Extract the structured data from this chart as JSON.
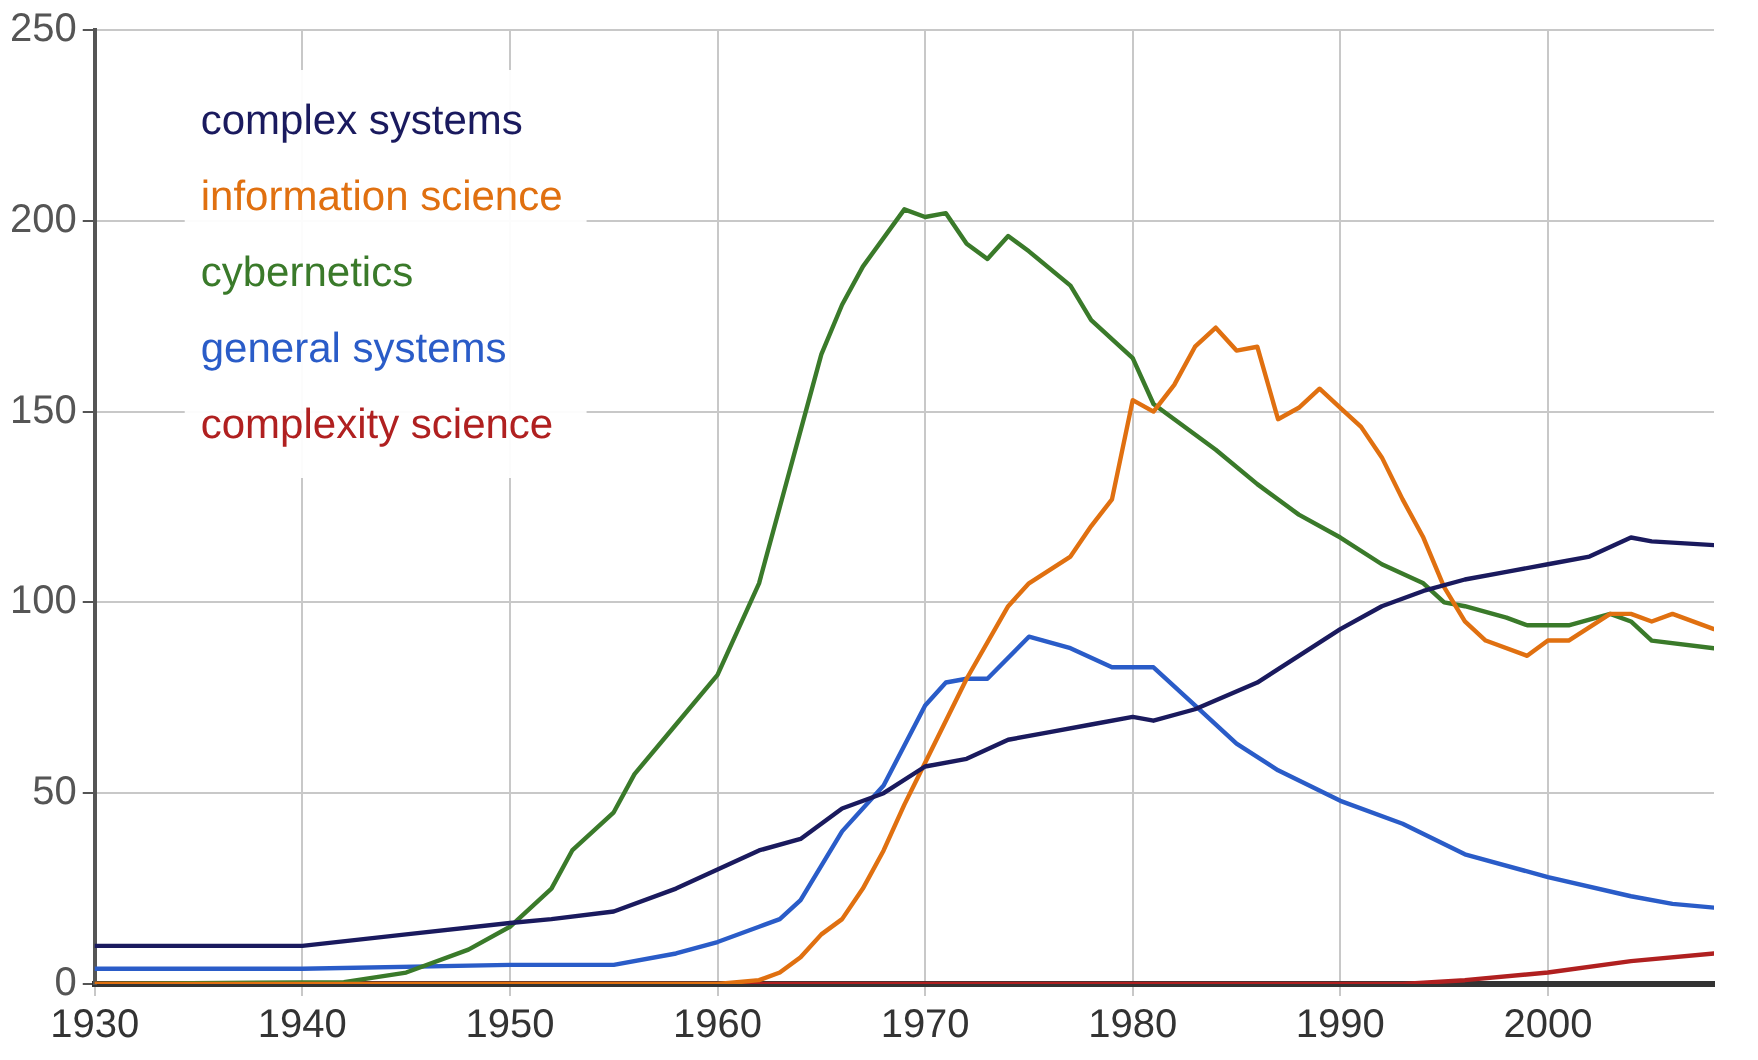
{
  "chart_data": {
    "type": "line",
    "xlim": [
      1930,
      2008
    ],
    "xticks": [
      1930,
      1940,
      1950,
      1960,
      1970,
      1980,
      1990,
      2000
    ],
    "ylim": [
      0,
      250
    ],
    "yticks": [
      0,
      50,
      100,
      150,
      200,
      250
    ],
    "grid": true,
    "legend": "top left",
    "marker": "none",
    "line_style": "solid",
    "series": [
      {
        "name": "complex systems",
        "color": "#1a1a5e",
        "x": [
          1930,
          1935,
          1940,
          1945,
          1950,
          1952,
          1955,
          1958,
          1960,
          1962,
          1964,
          1966,
          1968,
          1970,
          1972,
          1974,
          1976,
          1978,
          1980,
          1981,
          1983,
          1986,
          1988,
          1990,
          1992,
          1994,
          1996,
          1998,
          2000,
          2002,
          2004,
          2005,
          2008
        ],
        "values": [
          10,
          10,
          10,
          13,
          16,
          17,
          19,
          25,
          30,
          35,
          38,
          46,
          50,
          57,
          59,
          64,
          66,
          68,
          70,
          69,
          72,
          79,
          86,
          93,
          99,
          103,
          106,
          108,
          110,
          112,
          117,
          116,
          115
        ]
      },
      {
        "name": "information science",
        "color": "#e07010",
        "x": [
          1930,
          1960,
          1962,
          1963,
          1964,
          1965,
          1966,
          1967,
          1968,
          1969,
          1970,
          1972,
          1974,
          1975,
          1977,
          1978,
          1979,
          1980,
          1981,
          1982,
          1983,
          1984,
          1985,
          1986,
          1987,
          1988,
          1989,
          1990,
          1991,
          1992,
          1993,
          1994,
          1995,
          1996,
          1997,
          1999,
          2000,
          2001,
          2003,
          2004,
          2005,
          2006,
          2008
        ],
        "values": [
          0,
          0,
          1,
          3,
          7,
          13,
          17,
          25,
          35,
          47,
          58,
          80,
          99,
          105,
          112,
          120,
          127,
          153,
          150,
          157,
          167,
          172,
          166,
          167,
          148,
          151,
          156,
          151,
          146,
          138,
          127,
          117,
          104,
          95,
          90,
          86,
          90,
          90,
          97,
          97,
          95,
          97,
          93
        ]
      },
      {
        "name": "cybernetics",
        "color": "#3a7a2a",
        "x": [
          1930,
          1942,
          1945,
          1948,
          1950,
          1952,
          1953,
          1955,
          1956,
          1958,
          1960,
          1962,
          1963,
          1964,
          1965,
          1966,
          1967,
          1969,
          1970,
          1971,
          1972,
          1973,
          1974,
          1975,
          1977,
          1978,
          1980,
          1981,
          1982,
          1984,
          1986,
          1988,
          1990,
          1992,
          1994,
          1995,
          1996,
          1998,
          1999,
          2001,
          2003,
          2004,
          2005,
          2008
        ],
        "values": [
          0,
          0.5,
          3,
          9,
          15,
          25,
          35,
          45,
          55,
          68,
          81,
          105,
          125,
          145,
          165,
          178,
          188,
          203,
          201,
          202,
          194,
          190,
          196,
          192,
          183,
          174,
          164,
          152,
          148,
          140,
          131,
          123,
          117,
          110,
          105,
          100,
          99,
          96,
          94,
          94,
          97,
          95,
          90,
          88
        ]
      },
      {
        "name": "general systems",
        "color": "#2a5cc8",
        "x": [
          1930,
          1940,
          1950,
          1955,
          1958,
          1960,
          1962,
          1963,
          1964,
          1966,
          1968,
          1970,
          1971,
          1972,
          1973,
          1975,
          1977,
          1979,
          1981,
          1983,
          1985,
          1987,
          1990,
          1993,
          1996,
          2000,
          2004,
          2006,
          2008
        ],
        "values": [
          4,
          4,
          5,
          5,
          8,
          11,
          15,
          17,
          22,
          40,
          52,
          73,
          79,
          80,
          80,
          91,
          88,
          83,
          83,
          73,
          63,
          56,
          48,
          42,
          34,
          28,
          23,
          21,
          20
        ]
      },
      {
        "name": "complexity science",
        "color": "#b02020",
        "x": [
          1930,
          1993,
          1996,
          2000,
          2004,
          2008
        ],
        "values": [
          0,
          0,
          1,
          3,
          6,
          8
        ]
      }
    ]
  }
}
